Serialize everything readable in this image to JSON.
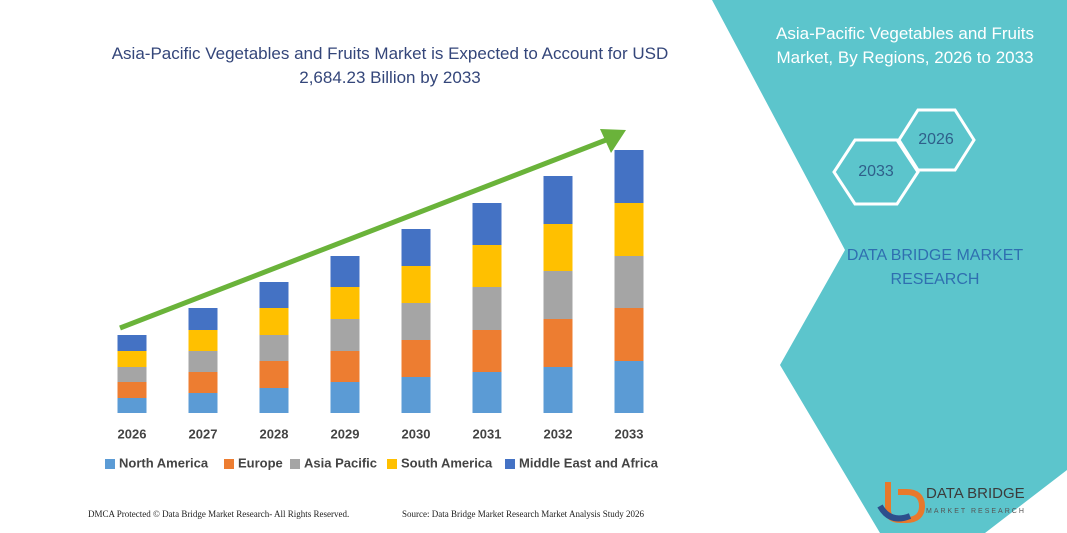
{
  "chart_data": {
    "type": "bar",
    "stacked": true,
    "title": "Asia-Pacific Vegetables and Fruits Market is Expected to Account for USD 2,684.23 Billion by 2033",
    "categories": [
      "2026",
      "2027",
      "2028",
      "2029",
      "2030",
      "2031",
      "2032",
      "2033"
    ],
    "series": [
      {
        "name": "North America",
        "color": "#5b9bd5",
        "values": [
          15,
          20,
          25,
          31,
          36,
          41,
          46,
          52
        ]
      },
      {
        "name": "Europe",
        "color": "#ed7d31",
        "values": [
          16,
          21,
          27,
          31,
          37,
          42,
          48,
          53
        ]
      },
      {
        "name": "Asia Pacific",
        "color": "#a5a5a5",
        "values": [
          15,
          21,
          26,
          32,
          37,
          43,
          48,
          52
        ]
      },
      {
        "name": "South America",
        "color": "#ffc000",
        "values": [
          16,
          21,
          27,
          32,
          37,
          42,
          47,
          53
        ]
      },
      {
        "name": "Middle East and Africa",
        "color": "#4472c4",
        "values": [
          16,
          22,
          26,
          31,
          37,
          42,
          48,
          53
        ]
      }
    ]
  },
  "panel": {
    "title": "Asia-Pacific Vegetables and Fruits Market, By Regions, 2026 to 2033",
    "hexagons": [
      "2033",
      "2026"
    ],
    "brand": "DATA BRIDGE MARKET RESEARCH"
  },
  "logo": {
    "name": "DATA BRIDGE",
    "tagline": "MARKET RESEARCH"
  },
  "footer": {
    "left": "DMCA Protected © Data Bridge Market Research- All Rights Reserved.",
    "right": "Source: Data Bridge Market Research Market Analysis Study 2026"
  }
}
